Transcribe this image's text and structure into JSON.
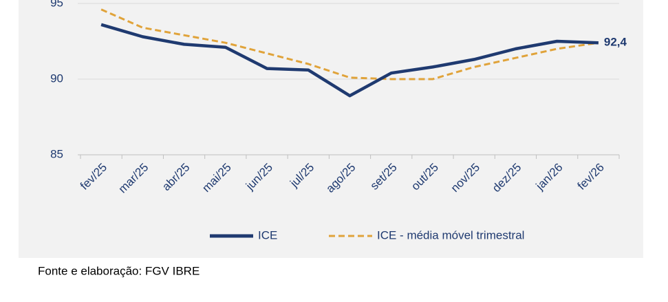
{
  "chart_data": {
    "type": "line",
    "categories": [
      "fev/25",
      "mar/25",
      "abr/25",
      "mai/25",
      "jun/25",
      "jul/25",
      "ago/25",
      "set/25",
      "out/25",
      "nov/25",
      "dez/25",
      "jan/26",
      "fev/26"
    ],
    "series": [
      {
        "name": "ICE",
        "color": "#1f3a70",
        "dashed": false,
        "values": [
          93.6,
          92.8,
          92.3,
          92.1,
          90.7,
          90.6,
          88.9,
          90.4,
          90.8,
          91.3,
          92.0,
          92.5,
          92.4
        ],
        "value_labels": [
          null,
          null,
          null,
          null,
          null,
          null,
          null,
          null,
          null,
          null,
          null,
          null,
          "92,4"
        ]
      },
      {
        "name": "ICE - média móvel trimestral",
        "color": "#e0a33a",
        "dashed": true,
        "values": [
          94.6,
          93.4,
          92.9,
          92.4,
          91.7,
          91.0,
          90.1,
          90.0,
          90.0,
          90.8,
          91.4,
          92.0,
          92.4
        ]
      }
    ],
    "ylim": [
      85,
      95
    ],
    "yticks": [
      85,
      90,
      95
    ],
    "grid": true,
    "legend": "bottom",
    "source": "Fonte e elaboração: FGV IBRE"
  }
}
